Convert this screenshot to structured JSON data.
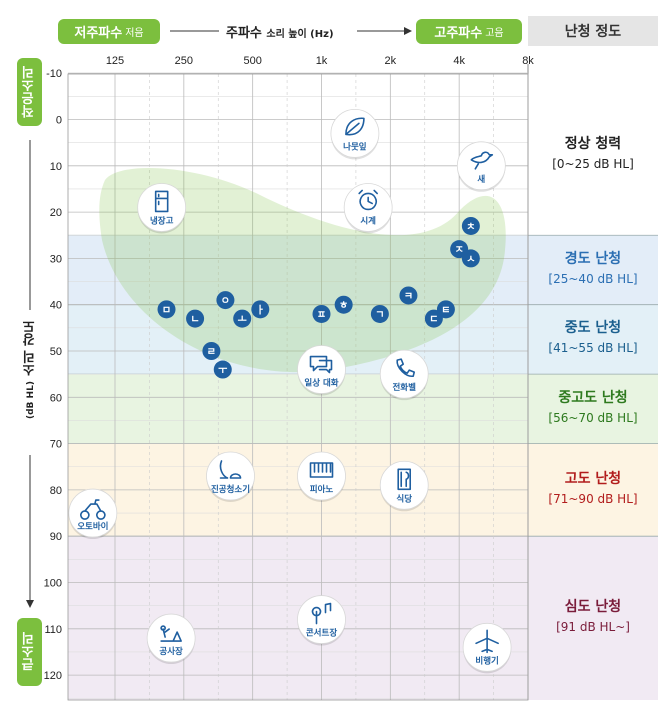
{
  "header": {
    "low_freq": "저주파수",
    "low_sub": "저음",
    "freq_title": "주파수",
    "freq_sub": "소리 높이 (Hz)",
    "high_freq": "고주파수",
    "high_sub": "고음",
    "level_title": "난청 정도"
  },
  "side": {
    "top": "작은소리",
    "title": "소리 강도",
    "title_sub": "(dB HL)",
    "bottom": "큰소리"
  },
  "chart_data": {
    "type": "scatter",
    "x_ticks": [
      "125",
      "250",
      "500",
      "1k",
      "2k",
      "4k",
      "8k"
    ],
    "y_ticks": [
      -10,
      0,
      10,
      20,
      30,
      40,
      50,
      60,
      70,
      80,
      90,
      100,
      110,
      120
    ],
    "ylim": [
      -10,
      120
    ],
    "y_inverted": true,
    "grid": true,
    "levels": [
      {
        "name": "정상 청력",
        "range": "[0~25 dB HL]",
        "from": -10,
        "to": 25,
        "color": "#ffffff",
        "text_color": "#222222"
      },
      {
        "name": "경도 난청",
        "range": "[25~40 dB HL]",
        "from": 25,
        "to": 40,
        "color": "#e3edf8",
        "text_color": "#2b6fb3"
      },
      {
        "name": "중도 난청",
        "range": "[41~55 dB HL]",
        "from": 40,
        "to": 55,
        "color": "#e3f0f7",
        "text_color": "#1b5f8e"
      },
      {
        "name": "중고도 난청",
        "range": "[56~70 dB HL]",
        "from": 55,
        "to": 70,
        "color": "#e8f4e1",
        "text_color": "#2e7a1f"
      },
      {
        "name": "고도 난청",
        "range": "[71~90 dB HL]",
        "from": 70,
        "to": 90,
        "color": "#fdf4e3",
        "text_color": "#b21d1d"
      },
      {
        "name": "심도 난청",
        "range": "[91 dB HL~]",
        "from": 90,
        "to": 130,
        "color": "#f1eaf3",
        "text_color": "#7a1c3a"
      }
    ],
    "sounds": [
      {
        "label": "나뭇잎",
        "icon": "leaf-icon",
        "x": 1400,
        "y": 3
      },
      {
        "label": "새",
        "icon": "bird-icon",
        "x": 5000,
        "y": 10
      },
      {
        "label": "냉장고",
        "icon": "fridge-icon",
        "x": 200,
        "y": 19
      },
      {
        "label": "시계",
        "icon": "clock-icon",
        "x": 1600,
        "y": 19
      },
      {
        "label": "일상 대화",
        "icon": "speech-icon",
        "x": 1000,
        "y": 54
      },
      {
        "label": "전화벨",
        "icon": "phone-icon",
        "x": 2300,
        "y": 55
      },
      {
        "label": "진공청소기",
        "icon": "vacuum-icon",
        "x": 400,
        "y": 77
      },
      {
        "label": "피아노",
        "icon": "piano-icon",
        "x": 1000,
        "y": 77
      },
      {
        "label": "식당",
        "icon": "restaurant-icon",
        "x": 2300,
        "y": 79
      },
      {
        "label": "오토바이",
        "icon": "motorcycle-icon",
        "x": 100,
        "y": 85
      },
      {
        "label": "공사장",
        "icon": "construction-icon",
        "x": 220,
        "y": 112
      },
      {
        "label": "콘서트장",
        "icon": "concert-icon",
        "x": 1000,
        "y": 108
      },
      {
        "label": "비행기",
        "icon": "airplane-icon",
        "x": 5300,
        "y": 114
      }
    ],
    "phonemes": [
      {
        "t": "ㅊ",
        "x": 4500,
        "y": 23
      },
      {
        "t": "ㅈ",
        "x": 4000,
        "y": 28
      },
      {
        "t": "ㅅ",
        "x": 4500,
        "y": 30
      },
      {
        "t": "ㅋ",
        "x": 2400,
        "y": 38
      },
      {
        "t": "ㅎ",
        "x": 1250,
        "y": 40
      },
      {
        "t": "ㅍ",
        "x": 1000,
        "y": 42
      },
      {
        "t": "ㄱ",
        "x": 1800,
        "y": 42
      },
      {
        "t": "ㅌ",
        "x": 3500,
        "y": 41
      },
      {
        "t": "ㄷ",
        "x": 3100,
        "y": 43
      },
      {
        "t": "ㅇ",
        "x": 380,
        "y": 39
      },
      {
        "t": "ㅏ",
        "x": 540,
        "y": 41
      },
      {
        "t": "ㅁ",
        "x": 210,
        "y": 41
      },
      {
        "t": "ㄴ",
        "x": 280,
        "y": 43
      },
      {
        "t": "ㅗ",
        "x": 450,
        "y": 43
      },
      {
        "t": "ㄹ",
        "x": 330,
        "y": 50
      },
      {
        "t": "ㅜ",
        "x": 370,
        "y": 54
      }
    ],
    "banana_color": "#7cbf3e"
  },
  "colors": {
    "accent_green": "#7cbf3e",
    "phoneme_blue": "#1f5fa0"
  }
}
